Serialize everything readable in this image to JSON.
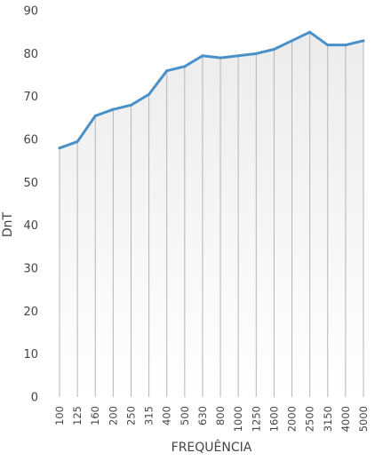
{
  "chart_data": {
    "type": "area",
    "xlabel": "FREQUÊNCIA",
    "ylabel": "DnT",
    "ylim": [
      0,
      90
    ],
    "yticks": [
      0,
      10,
      20,
      30,
      40,
      50,
      60,
      70,
      80,
      90
    ],
    "categories": [
      "100",
      "125",
      "160",
      "200",
      "250",
      "315",
      "400",
      "500",
      "630",
      "800",
      "1000",
      "1250",
      "1600",
      "2000",
      "2500",
      "3150",
      "4000",
      "5000"
    ],
    "series": [
      {
        "values": [
          58,
          59.5,
          65.5,
          67,
          68,
          70.5,
          76,
          77,
          79.5,
          79,
          79.5,
          80,
          81,
          83,
          85,
          82,
          82,
          83
        ],
        "color": "#4a90c8"
      }
    ],
    "fill_gradient": [
      "#ececec",
      "#ffffff"
    ],
    "vertical_drop_lines": true,
    "grid": false
  }
}
